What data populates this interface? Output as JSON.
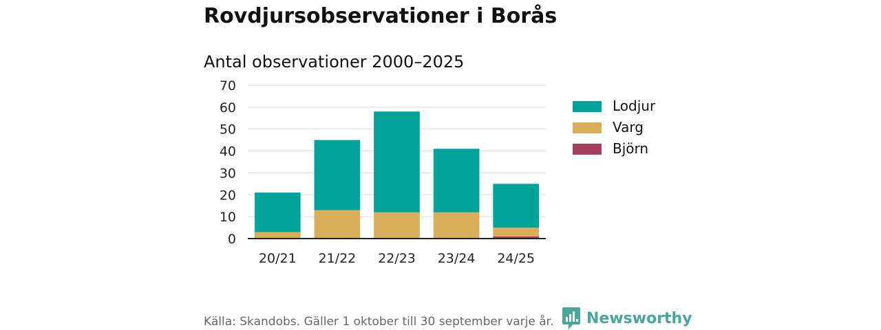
{
  "title": "Rovdjursobservationer i Borås",
  "subtitle": "Antal observationer 2000–2025",
  "source": "Källa: Skandobs. Gäller 1 oktober till 30 september varje år.",
  "brand": {
    "name": "Newsworthy",
    "color": "#4aa59a",
    "icon": "newsworthy-chart-icon"
  },
  "chart_data": {
    "type": "bar",
    "stacked": true,
    "categories": [
      "20/21",
      "21/22",
      "22/23",
      "23/24",
      "24/25"
    ],
    "series": [
      {
        "name": "Björn",
        "color": "#a5405e",
        "values": [
          0,
          0,
          0,
          0,
          1
        ]
      },
      {
        "name": "Varg",
        "color": "#d9ae5b",
        "values": [
          3,
          13,
          12,
          12,
          4
        ]
      },
      {
        "name": "Lodjur",
        "color": "#00a39a",
        "values": [
          18,
          32,
          46,
          29,
          20
        ]
      }
    ],
    "legend_order": [
      "Lodjur",
      "Varg",
      "Björn"
    ],
    "yticks": [
      0,
      10,
      20,
      30,
      40,
      50,
      60,
      70
    ],
    "ylim": [
      0,
      70
    ],
    "grid": true,
    "legend_position": "right"
  }
}
